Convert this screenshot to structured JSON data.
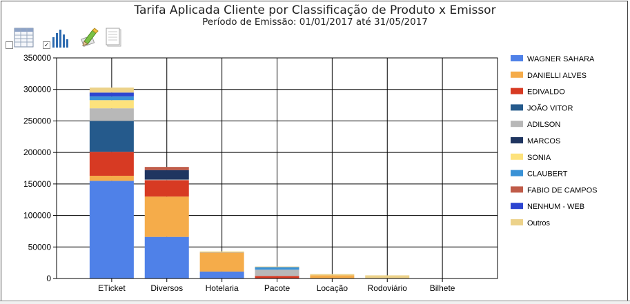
{
  "title": "Tarifa Aplicada Cliente por Classificação de Produto x Emissor",
  "subtitle": "Período de Emissão: 01/01/2017 até 31/05/2017",
  "toolbar": {
    "items": [
      {
        "icon": "table-grid-icon",
        "checked": false
      },
      {
        "icon": "bar-chart-icon",
        "checked": true
      },
      {
        "icon": "edit-pencil-icon"
      },
      {
        "icon": "document-icon"
      }
    ]
  },
  "colors": {
    "WAGNER SAHARA": "#4f81e8",
    "DANIELLI ALVES": "#f5ac4a",
    "EDIVALDO": "#d73a23",
    "JOÃO VITOR": "#255a8c",
    "ADILSON": "#b8b8b8",
    "MARCOS": "#1f3560",
    "SONIA": "#fde27c",
    "CLAUBERT": "#3a92d6",
    "FABIO DE CAMPOS": "#c05c49",
    "NENHUM - WEB": "#2d45d0",
    "Outros": "#ecd28a"
  },
  "chart_data": {
    "type": "bar",
    "stacked": true,
    "title": "Tarifa Aplicada Cliente por Classificação de Produto x Emissor",
    "subtitle": "Período de Emissão: 01/01/2017 até 31/05/2017",
    "xlabel": "",
    "ylabel": "",
    "ylim": [
      0,
      350000
    ],
    "yticks": [
      0,
      50000,
      100000,
      150000,
      200000,
      250000,
      300000,
      350000
    ],
    "ytick_labels": [
      "0",
      "50000",
      "100000",
      "150000",
      "200000",
      "250000",
      "300000",
      "350000"
    ],
    "grid": true,
    "legend_position": "right",
    "categories": [
      "ETicket",
      "Diversos",
      "Hotelaria",
      "Pacote",
      "Locação",
      "Rodoviário",
      "Bilhete"
    ],
    "series": [
      {
        "name": "WAGNER SAHARA",
        "values": [
          155000,
          66000,
          11000,
          0,
          0,
          0,
          0
        ]
      },
      {
        "name": "DANIELLI ALVES",
        "values": [
          8000,
          64000,
          30000,
          0,
          5000,
          0,
          0
        ]
      },
      {
        "name": "EDIVALDO",
        "values": [
          38000,
          26000,
          0,
          4000,
          0,
          0,
          0
        ]
      },
      {
        "name": "JOÃO VITOR",
        "values": [
          49000,
          0,
          0,
          0,
          0,
          0,
          0
        ]
      },
      {
        "name": "ADILSON",
        "values": [
          20000,
          1000,
          1000,
          10000,
          0,
          0,
          0
        ]
      },
      {
        "name": "MARCOS",
        "values": [
          0,
          15000,
          0,
          0,
          0,
          0,
          0
        ]
      },
      {
        "name": "SONIA",
        "values": [
          13000,
          0,
          1000,
          0,
          0,
          0,
          0
        ]
      },
      {
        "name": "CLAUBERT",
        "values": [
          6000,
          0,
          0,
          4000,
          0,
          0,
          0
        ]
      },
      {
        "name": "FABIO DE CAMPOS",
        "values": [
          0,
          5000,
          0,
          0,
          0,
          0,
          0
        ]
      },
      {
        "name": "NENHUM - WEB",
        "values": [
          6000,
          0,
          0,
          0,
          0,
          0,
          0
        ]
      },
      {
        "name": "Outros",
        "values": [
          8000,
          0,
          0,
          1000,
          2000,
          5000,
          0
        ]
      }
    ]
  }
}
